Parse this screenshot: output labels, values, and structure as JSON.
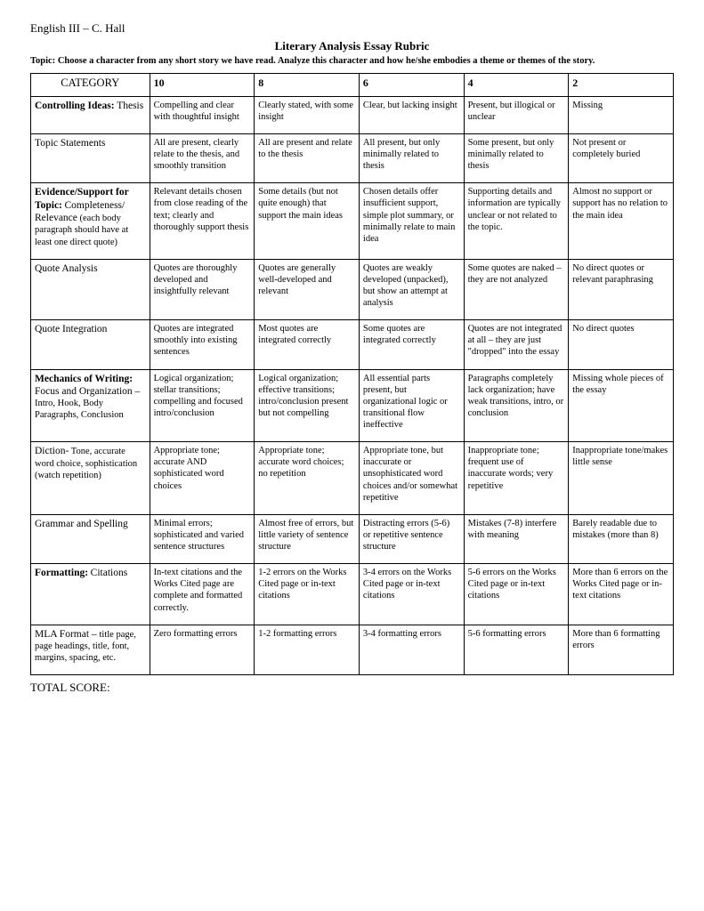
{
  "header": "English III – C. Hall",
  "title": "Literary Analysis Essay Rubric",
  "topic_label": "Topic:",
  "topic_text": "Choose a character from any short story we have read.  Analyze this character and how he/she embodies a theme or themes of the story.",
  "columns": {
    "category": "CATEGORY",
    "s10": "10",
    "s8": "8",
    "s6": "6",
    "s4": "4",
    "s2": "2"
  },
  "rows": [
    {
      "cat_bold": "Controlling Ideas:",
      "cat_plain": "Thesis",
      "c10": "Compelling and clear with thoughtful insight",
      "c8": "Clearly stated, with some insight",
      "c6": "Clear, but lacking insight",
      "c4": "Present, but illogical or unclear",
      "c2": "Missing"
    },
    {
      "cat_plain": "Topic Statements",
      "c10": "All are present, clearly relate to the thesis, and smoothly transition",
      "c8": "All are present and relate to the thesis",
      "c6": "All present, but only minimally related to thesis",
      "c4": "Some present, but only minimally related to thesis",
      "c2": "Not present or completely buried"
    },
    {
      "cat_bold": "Evidence/Support for Topic:",
      "cat_plain": "Completeness/ Relevance",
      "cat_small": " (each body paragraph should have at least one direct quote)",
      "c10": "Relevant details chosen from close reading of the text; clearly and thoroughly support thesis",
      "c8": "Some details (but not quite enough) that support the main ideas",
      "c6": "Chosen details offer insufficient support, simple plot summary, or minimally relate to main idea",
      "c4": "Supporting details and information are typically unclear or not related to the topic.",
      "c2": "Almost no support or support has no relation to the main idea"
    },
    {
      "cat_plain": "Quote Analysis",
      "c10": "Quotes are thoroughly developed and insightfully relevant",
      "c8": "Quotes are generally well-developed and relevant",
      "c6": "Quotes are weakly developed (unpacked), but show an attempt at analysis",
      "c4": "Some quotes are naked – they are not analyzed",
      "c2": "No direct quotes or relevant paraphrasing"
    },
    {
      "cat_plain": "Quote Integration",
      "c10": "Quotes are integrated smoothly into existing sentences",
      "c8": "Most quotes are integrated correctly",
      "c6": "Some quotes are integrated correctly",
      "c4": "Quotes are not integrated at all – they are just \"dropped\" into the essay",
      "c2": "No direct quotes"
    },
    {
      "cat_bold": "Mechanics of Writing:",
      "cat_plain": "Focus and Organization –",
      "cat_small": "Intro, Hook, Body Paragraphs, Conclusion",
      "c10": "Logical organization; stellar transitions; compelling and focused intro/conclusion",
      "c8": "Logical organization; effective transitions; intro/conclusion present but not compelling",
      "c6": "All essential parts present, but organizational logic or transitional flow ineffective",
      "c4": "Paragraphs completely lack organization; have weak transitions, intro, or conclusion",
      "c2": "Missing whole pieces of the essay"
    },
    {
      "cat_plain": "Diction-",
      "cat_small": "Tone, accurate word choice, sophistication (watch repetition)",
      "c10": "Appropriate tone; accurate AND sophisticated word choices",
      "c8": "Appropriate tone; accurate word choices; no repetition",
      "c6": "Appropriate tone, but inaccurate or unsophisticated word choices and/or somewhat repetitive",
      "c4": "Inappropriate tone; frequent use of inaccurate words; very repetitive",
      "c2": "Inappropriate tone/makes little sense"
    },
    {
      "cat_plain": "Grammar and Spelling",
      "c10": "Minimal errors; sophisticated and varied sentence structures",
      "c8": "Almost free of errors, but little variety of sentence structure",
      "c6": "Distracting errors (5-6) or repetitive sentence structure",
      "c4": "Mistakes (7-8) interfere with meaning",
      "c2": "Barely readable due to mistakes (more than 8)"
    },
    {
      "cat_bold": "Formatting:",
      "cat_plain": "Citations",
      "c10": "In-text citations and the Works Cited page are complete and formatted correctly.",
      "c8": "1-2 errors on the Works Cited page or in-text citations",
      "c6": "3-4 errors on the Works Cited page or in-text citations",
      "c4": "5-6 errors on the Works Cited page or in-text citations",
      "c2": "More than 6 errors on the Works Cited page or in-text citations"
    },
    {
      "cat_plain": "MLA Format – ",
      "cat_small": "title page, page headings, title, font, margins, spacing, etc.",
      "c10": "Zero formatting errors",
      "c8": "1-2 formatting errors",
      "c6": "3-4 formatting errors",
      "c4": "5-6 formatting errors",
      "c2": "More than 6 formatting errors"
    }
  ],
  "total": "TOTAL SCORE:"
}
